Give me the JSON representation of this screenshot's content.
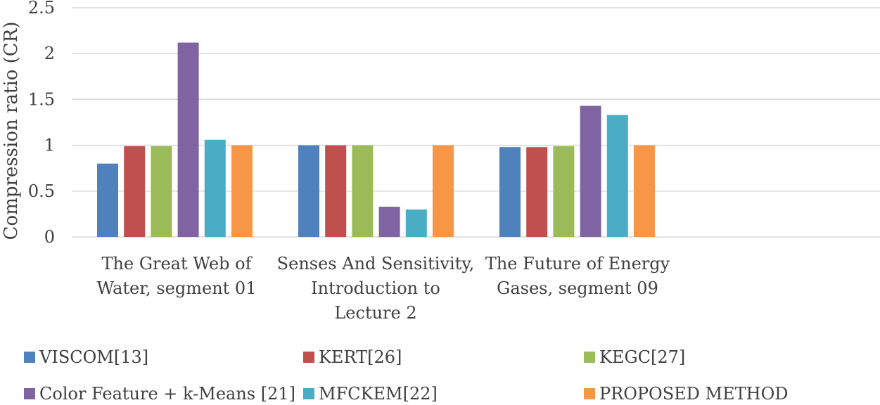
{
  "chart_data": {
    "type": "bar",
    "ylabel": "Compression ratio (CR)",
    "ylim": [
      0,
      2.5
    ],
    "yticks": [
      "0",
      "0.5",
      "1",
      "1.5",
      "2",
      "2.5"
    ],
    "grid": true,
    "legend_position": "bottom",
    "categories": [
      [
        "The Great Web of",
        "Water, segment 01"
      ],
      [
        "Senses And Sensitivity,",
        "Introduction to",
        "Lecture 2"
      ],
      [
        "The Future of Energy",
        "Gases, segment 09"
      ]
    ],
    "series": [
      {
        "name": "VISCOM[13]",
        "color": "#4F81BD",
        "values": [
          0.8,
          1.0,
          0.98
        ]
      },
      {
        "name": "KERT[26]",
        "color": "#C0504D",
        "values": [
          0.99,
          1.0,
          0.98
        ]
      },
      {
        "name": "KEGC[27]",
        "color": "#9BBB59",
        "values": [
          0.99,
          1.0,
          0.99
        ]
      },
      {
        "name": "Color Feature + k-Means [21]",
        "color": "#8064A2",
        "values": [
          2.12,
          0.33,
          1.43
        ]
      },
      {
        "name": "MFCKEM[22]",
        "color": "#4BACC6",
        "values": [
          1.06,
          0.3,
          1.33
        ]
      },
      {
        "name": "PROPOSED METHOD",
        "color": "#F79646",
        "values": [
          1.0,
          1.0,
          1.0
        ]
      }
    ]
  }
}
